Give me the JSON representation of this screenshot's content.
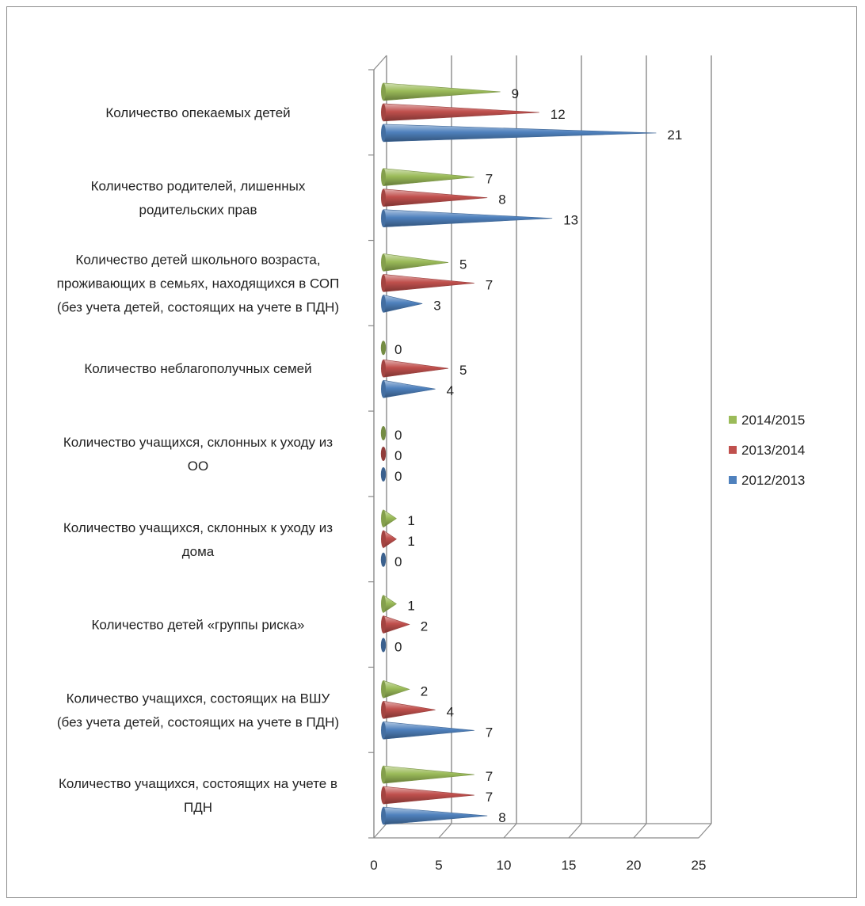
{
  "chart_data": {
    "type": "bar",
    "orientation": "horizontal",
    "style": "3d-cone",
    "categories": [
      [
        "Количество опекаемых детей"
      ],
      [
        "Количество родителей, лишенных",
        "родительских прав"
      ],
      [
        "Количество детей школьного возраста,",
        "проживающих в семьях, находящихся в СОП",
        "(без учета детей, состоящих на учете в ПДН)"
      ],
      [
        "Количество неблагополучных семей"
      ],
      [
        "Количество учащихся, склонных к уходу из",
        "ОО"
      ],
      [
        "Количество учащихся, склонных к уходу из",
        "дома"
      ],
      [
        "Количество детей «группы риска»"
      ],
      [
        "Количество учащихся, состоящих на ВШУ",
        "(без учета детей, состоящих на учете в ПДН)"
      ],
      [
        "Количество учащихся, состоящих на учете в",
        "ПДН"
      ]
    ],
    "series": [
      {
        "name": "2014/2015",
        "color": "#9bbb59",
        "values": [
          9,
          7,
          5,
          0,
          0,
          1,
          1,
          2,
          7
        ]
      },
      {
        "name": "2013/2014",
        "color": "#c0504d",
        "values": [
          12,
          8,
          7,
          5,
          0,
          1,
          2,
          4,
          7
        ]
      },
      {
        "name": "2012/2013",
        "color": "#4f81bd",
        "values": [
          21,
          13,
          3,
          4,
          0,
          0,
          0,
          7,
          8
        ]
      }
    ],
    "x_ticks": [
      "0",
      "5",
      "10",
      "15",
      "20",
      "25"
    ],
    "xlim": [
      0,
      25
    ],
    "grid": true,
    "legend_position": "right"
  }
}
